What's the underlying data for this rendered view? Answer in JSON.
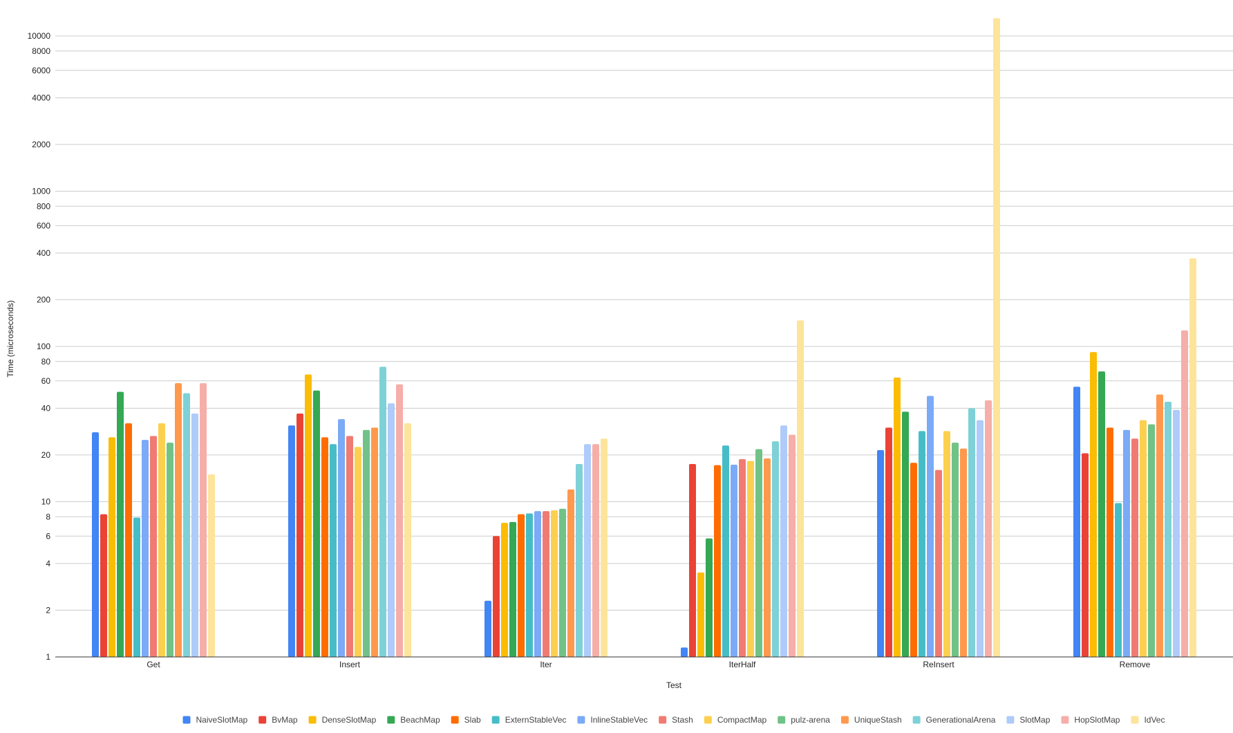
{
  "chart_data": {
    "type": "bar",
    "yscale": "log",
    "xlabel": "Test",
    "ylabel": "Time (microseconds)",
    "ylim": [
      1,
      14000
    ],
    "ytick_labels": [
      "1",
      "2",
      "4",
      "6",
      "8",
      "10",
      "20",
      "40",
      "60",
      "80",
      "100",
      "200",
      "400",
      "600",
      "800",
      "1000",
      "2000",
      "4000",
      "6000",
      "8000",
      "10000"
    ],
    "ytick_values": [
      1,
      2,
      4,
      6,
      8,
      10,
      20,
      40,
      60,
      80,
      100,
      200,
      400,
      600,
      800,
      1000,
      2000,
      4000,
      6000,
      8000,
      10000
    ],
    "grid": true,
    "legend_position": "bottom",
    "categories": [
      "Get",
      "Insert",
      "Iter",
      "IterHalf",
      "ReInsert",
      "Remove"
    ],
    "series": [
      {
        "name": "NaiveSlotMap",
        "color": "#4285f4",
        "values": [
          28,
          31,
          2.3,
          1.15,
          21.5,
          55
        ]
      },
      {
        "name": "BvMap",
        "color": "#ea4335",
        "values": [
          8.3,
          37,
          6,
          17.5,
          30,
          20.5
        ]
      },
      {
        "name": "DenseSlotMap",
        "color": "#fbbc04",
        "values": [
          26,
          66,
          7.3,
          3.5,
          63,
          92
        ]
      },
      {
        "name": "BeachMap",
        "color": "#34a853",
        "values": [
          51,
          52,
          7.4,
          5.8,
          38,
          69
        ]
      },
      {
        "name": "Slab",
        "color": "#ff6d01",
        "values": [
          32,
          26,
          8.3,
          17.2,
          17.8,
          30
        ]
      },
      {
        "name": "ExternStableVec",
        "color": "#46bdc6",
        "values": [
          7.9,
          23.5,
          8.4,
          23,
          28.5,
          9.8
        ]
      },
      {
        "name": "InlineStableVec",
        "color": "#7baaf7",
        "values": [
          25,
          34,
          8.7,
          17.3,
          48,
          29
        ]
      },
      {
        "name": "Stash",
        "color": "#f07b72",
        "values": [
          26.5,
          26.5,
          8.7,
          18.8,
          16,
          25.5
        ]
      },
      {
        "name": "CompactMap",
        "color": "#fcd04f",
        "values": [
          32,
          22.5,
          8.8,
          18.3,
          28.5,
          33.5
        ]
      },
      {
        "name": "pulz-arena",
        "color": "#71c287",
        "values": [
          24,
          29,
          9,
          21.8,
          24,
          31.5
        ]
      },
      {
        "name": "UniqueStash",
        "color": "#ff994d",
        "values": [
          58,
          30,
          12,
          19,
          22,
          49
        ]
      },
      {
        "name": "GenerationalArena",
        "color": "#7ed1d7",
        "values": [
          50,
          74,
          17.5,
          24.5,
          40,
          44
        ]
      },
      {
        "name": "SlotMap",
        "color": "#afcbfa",
        "values": [
          37,
          43,
          23.5,
          31,
          33.5,
          39
        ]
      },
      {
        "name": "HopSlotMap",
        "color": "#f6aea9",
        "values": [
          58,
          57,
          23.5,
          27,
          45,
          127
        ]
      },
      {
        "name": "IdVec",
        "color": "#fde49b",
        "values": [
          15,
          32,
          25.5,
          147,
          13000,
          370
        ]
      }
    ]
  }
}
